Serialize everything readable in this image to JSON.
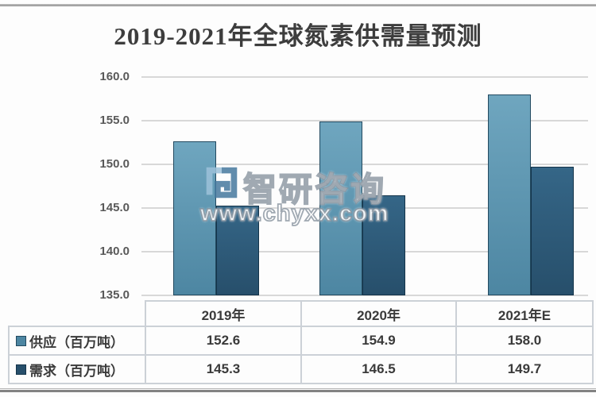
{
  "page_title": "2019-2021年全球氮素供需量预测",
  "watermark": {
    "brand": "智研咨询",
    "url": "www.chyxx.com",
    "logo": "zhiyan-maze-logo",
    "logo_light_blue": "#9dc2da",
    "logo_dark_blue": "#46799f"
  },
  "chart_data": {
    "type": "bar",
    "title": "2019-2021年全球氮素供需量预测",
    "categories": [
      "2019年",
      "2020年",
      "2021年E"
    ],
    "series": [
      {
        "name": "供应（百万吨）",
        "values": [
          152.6,
          154.9,
          158.0
        ],
        "color_top": "#6fa6bf",
        "color_bottom": "#4d86a2",
        "border": "#234a60"
      },
      {
        "name": "需求（百万吨）",
        "values": [
          145.3,
          146.5,
          149.7
        ],
        "color_top": "#356687",
        "color_bottom": "#274f6b",
        "border": "#14344a"
      }
    ],
    "ylim": [
      135.0,
      160.0
    ],
    "ytick_step": 5.0,
    "yticks": [
      160.0,
      155.0,
      150.0,
      145.0,
      140.0,
      135.0
    ],
    "grid": true,
    "legend_position": "table-left-column",
    "xlabel": "",
    "ylabel": ""
  },
  "colors": {
    "grid": "#d8d8d8",
    "axis_text": "#595959",
    "table_text": "#3a3a3a",
    "table_line": "#ccd1d7",
    "top_rule": "#a3a3a3",
    "bottom_rule": "#828282",
    "background": "#fdfdfd"
  }
}
